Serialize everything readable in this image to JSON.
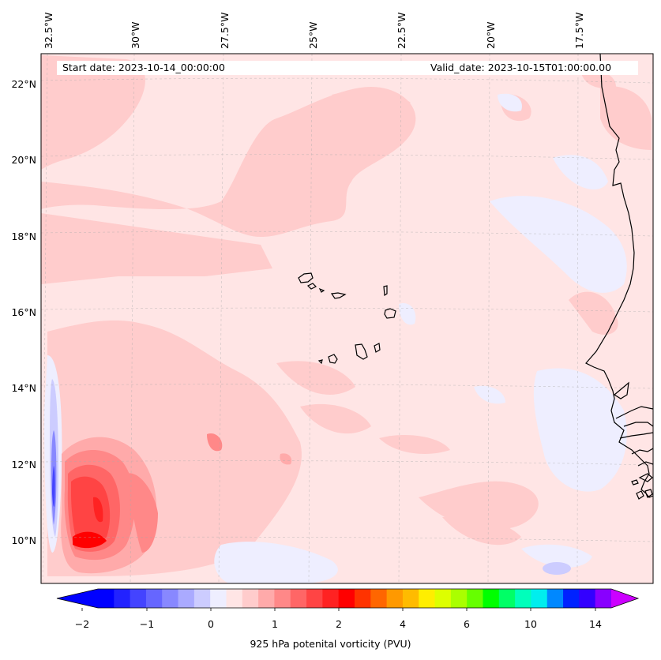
{
  "header": {
    "start_label": "Start date: 2023-10-14_00:00:00",
    "valid_label": "Valid_date: 2023-10-15T01:00:00.00"
  },
  "map": {
    "lon_labels": [
      "32.5°W",
      "30°W",
      "27.5°W",
      "25°W",
      "22.5°W",
      "20°W",
      "17.5°W"
    ],
    "lat_labels": [
      "22°N",
      "20°N",
      "18°N",
      "16°N",
      "14°N",
      "12°N",
      "10°N"
    ],
    "background_color": "#ffe5e5"
  },
  "colorbar": {
    "title": "925 hPa potenital vorticity (PVU)",
    "tick_labels": [
      "−2",
      "−1",
      "0",
      "1",
      "2",
      "4",
      "6",
      "10",
      "14"
    ],
    "colors": [
      "#0000ff",
      "#2222ff",
      "#4444ff",
      "#6666ff",
      "#8888ff",
      "#aaaaff",
      "#ccccff",
      "#eeeeff",
      "#ffe5e5",
      "#ffcccc",
      "#ffaaaa",
      "#ff8888",
      "#ff6666",
      "#ff4444",
      "#ff2222",
      "#ff0000",
      "#ff3300",
      "#ff6600",
      "#ff9900",
      "#ffbb00",
      "#ffee00",
      "#ddff00",
      "#aaff00",
      "#66ff00",
      "#00ff00",
      "#00ff66",
      "#00ffbb",
      "#00eeee",
      "#0088ff",
      "#0022ff",
      "#3300ff",
      "#8800ff"
    ],
    "under_color": "#0000ff",
    "over_color": "#cc00ff"
  }
}
